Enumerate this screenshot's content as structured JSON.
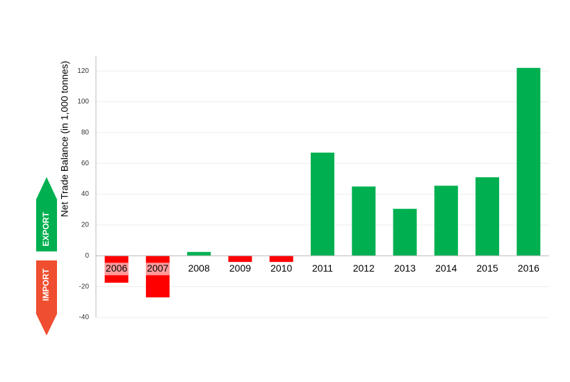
{
  "chart_data": {
    "type": "bar",
    "y_label": "Net Trade Balance (in 1,000  tonnes)",
    "annotations": [
      "EXPORT",
      "IMPORT"
    ],
    "categories": [
      "2006",
      "2007",
      "2008",
      "2009",
      "2010",
      "2011",
      "2012",
      "2013",
      "2014",
      "2015",
      "2016"
    ],
    "values": [
      -17.5,
      -27,
      2.5,
      -4,
      -4,
      67,
      45,
      30.5,
      45.5,
      51,
      122
    ],
    "positive_color": "#00b050",
    "negative_color": "#ff0000",
    "ylim": [
      -40,
      130
    ],
    "yticks": [
      -40,
      -20,
      0,
      20,
      40,
      60,
      80,
      100,
      120
    ],
    "grid": true
  }
}
